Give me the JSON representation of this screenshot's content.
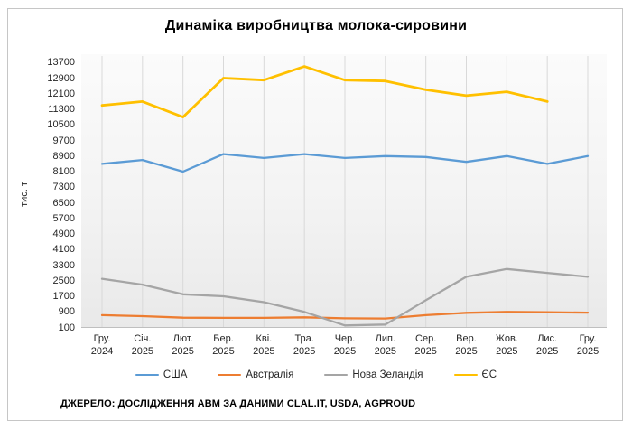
{
  "chart": {
    "title": "Динаміка виробництва молока-сировини",
    "ylabel": "тис. т",
    "source": "ДЖЕРЕЛО: ДОСЛІДЖЕННЯ АВМ ЗА ДАНИМИ CLAL.IT, USDA, AGPROUD"
  },
  "chart_data": {
    "type": "line",
    "title": "Динаміка виробництва молока-сировини",
    "ylabel": "тис. т",
    "ylim": [
      100,
      13700
    ],
    "ytick_step": 800,
    "yticks": [
      100,
      900,
      1700,
      2500,
      3300,
      4100,
      4900,
      5700,
      6500,
      7300,
      8100,
      8900,
      9700,
      10500,
      11300,
      12100,
      12900,
      13700
    ],
    "grid": "vertical-only",
    "legend_position": "bottom",
    "categories": [
      {
        "month": "Гру.",
        "year": "2024"
      },
      {
        "month": "Січ.",
        "year": "2025"
      },
      {
        "month": "Лют.",
        "year": "2025"
      },
      {
        "month": "Бер.",
        "year": "2025"
      },
      {
        "month": "Кві.",
        "year": "2025"
      },
      {
        "month": "Тра.",
        "year": "2025"
      },
      {
        "month": "Чер.",
        "year": "2025"
      },
      {
        "month": "Лип.",
        "year": "2025"
      },
      {
        "month": "Сер.",
        "year": "2025"
      },
      {
        "month": "Вер.",
        "year": "2025"
      },
      {
        "month": "Жов.",
        "year": "2025"
      },
      {
        "month": "Лис.",
        "year": "2025"
      },
      {
        "month": "Гру.",
        "year": "2025"
      }
    ],
    "series": [
      {
        "name": "США",
        "color": "#5B9BD5",
        "values": [
          8500,
          8700,
          8100,
          9000,
          8800,
          9000,
          8800,
          8900,
          8850,
          8600,
          8900,
          8500,
          8900
        ]
      },
      {
        "name": "Австралія",
        "color": "#ED7D31",
        "values": [
          730,
          680,
          600,
          590,
          590,
          620,
          570,
          560,
          730,
          850,
          900,
          880,
          860
        ]
      },
      {
        "name": "Нова Зеландія",
        "color": "#A5A5A5",
        "values": [
          2600,
          2300,
          1800,
          1700,
          1400,
          900,
          200,
          250,
          1500,
          2700,
          3100,
          2900,
          2700
        ]
      },
      {
        "name": "ЄС",
        "color": "#FFC000",
        "values": [
          11500,
          11700,
          10900,
          12900,
          12800,
          13500,
          12800,
          12750,
          12300,
          12000,
          12200,
          11700,
          null
        ]
      }
    ]
  }
}
